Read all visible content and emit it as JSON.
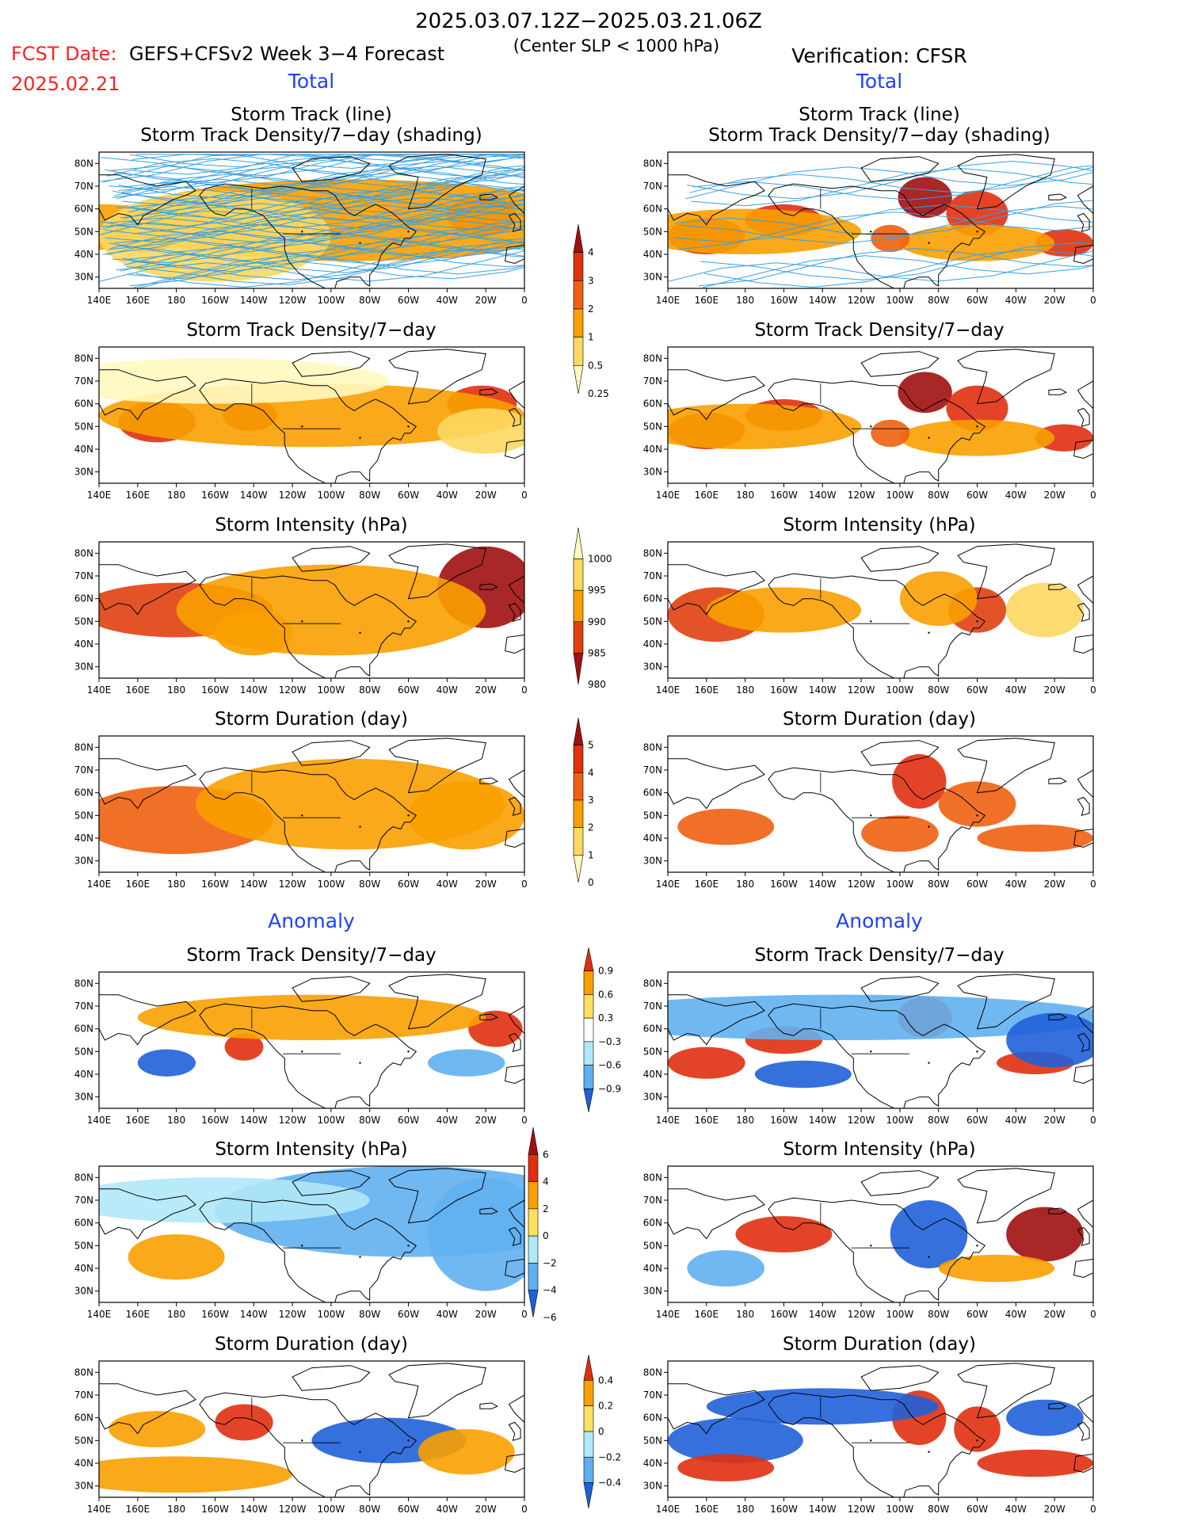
{
  "header": {
    "period": "2025.03.07.12Z−2025.03.21.06Z",
    "fcst_date_label": "FCST Date:",
    "fcst_date": "2025.02.21",
    "model": "GEFS+CFSv2 Week 3−4 Forecast",
    "criterion": "(Center SLP < 1000 hPa)",
    "verification": "Verification: CFSR"
  },
  "sections": {
    "total_left": "Total",
    "total_right": "Total",
    "anomaly_left": "Anomaly",
    "anomaly_right": "Anomaly"
  },
  "axes": {
    "lon_ticks": [
      "140E",
      "160E",
      "180",
      "160W",
      "140W",
      "120W",
      "100W",
      "80W",
      "60W",
      "40W",
      "20W",
      "0"
    ],
    "lat_ticks": [
      "80N",
      "70N",
      "60N",
      "50N",
      "40N",
      "30N"
    ]
  },
  "colorbars": {
    "density": {
      "labels": [
        "4",
        "3",
        "2",
        "1",
        "0.5",
        "0.25"
      ],
      "colors": [
        "#a01010",
        "#e03010",
        "#f06010",
        "#f8a000",
        "#fcd860",
        "#fff8c0"
      ]
    },
    "intensity": {
      "labels": [
        "1000",
        "995",
        "990",
        "985",
        "980"
      ],
      "colors": [
        "#fff8c0",
        "#fcd860",
        "#f8a000",
        "#e04010",
        "#a01010"
      ]
    },
    "duration": {
      "labels": [
        "5",
        "4",
        "3",
        "2",
        "1",
        "0"
      ],
      "colors": [
        "#a01010",
        "#e03010",
        "#f06010",
        "#f8a000",
        "#fcd860",
        "#fff8c0"
      ]
    },
    "density_anom": {
      "labels": [
        "0.9",
        "0.6",
        "0.3",
        "−0.3",
        "−0.6",
        "−0.9"
      ],
      "colors": [
        "#e03010",
        "#f8a000",
        "#fce060",
        "#ffffff",
        "#b0e8f8",
        "#60b0f0",
        "#2060d8"
      ]
    },
    "intensity_anom": {
      "labels": [
        "6",
        "4",
        "2",
        "0",
        "−2",
        "−4",
        "−6"
      ],
      "colors": [
        "#a01010",
        "#e03010",
        "#f8a000",
        "#fce060",
        "#b0e8f8",
        "#60b0f0",
        "#2060d8"
      ]
    },
    "duration_anom": {
      "labels": [
        "0.4",
        "0.2",
        "0",
        "−0.2",
        "−0.4"
      ],
      "colors": [
        "#e03010",
        "#f8a000",
        "#fce060",
        "#b0e8f8",
        "#60b0f0",
        "#2060d8"
      ]
    }
  },
  "panels": [
    {
      "id": "fc-track",
      "title1": "Storm Track (line)",
      "title2": "Storm Track Density/7−day (shading)"
    },
    {
      "id": "ob-track",
      "title1": "Storm Track (line)",
      "title2": "Storm Track Density/7−day (shading)"
    },
    {
      "id": "fc-density",
      "title1": "Storm Track Density/7−day"
    },
    {
      "id": "ob-density",
      "title1": "Storm Track Density/7−day"
    },
    {
      "id": "fc-intensity",
      "title1": "Storm Intensity (hPa)"
    },
    {
      "id": "ob-intensity",
      "title1": "Storm Intensity (hPa)"
    },
    {
      "id": "fc-duration",
      "title1": "Storm Duration (day)"
    },
    {
      "id": "ob-duration",
      "title1": "Storm Duration (day)"
    },
    {
      "id": "fc-density-anom",
      "title1": "Storm Track Density/7−day"
    },
    {
      "id": "ob-density-anom",
      "title1": "Storm Track Density/7−day"
    },
    {
      "id": "fc-intensity-anom",
      "title1": "Storm Intensity (hPa)"
    },
    {
      "id": "ob-intensity-anom",
      "title1": "Storm Intensity (hPa)"
    },
    {
      "id": "fc-duration-anom",
      "title1": "Storm Duration (day)"
    },
    {
      "id": "ob-duration-anom",
      "title1": "Storm Duration (day)"
    }
  ],
  "chart_data": {
    "type": "heatmap",
    "x_range_deg_lon": [
      140,
      360
    ],
    "y_range_deg_lat": [
      25,
      85
    ],
    "projection": "lat-lon",
    "blobs": {
      "fc-track": [
        [
          165,
          50,
          18,
          9,
          3
        ],
        [
          140,
          52,
          50,
          10,
          1
        ],
        [
          338,
          57,
          18,
          9,
          3
        ],
        [
          270,
          55,
          120,
          18,
          1
        ],
        [
          200,
          48,
          60,
          20,
          0.6
        ]
      ],
      "ob-track": [
        [
          160,
          48,
          20,
          8,
          3
        ],
        [
          200,
          55,
          20,
          7,
          3
        ],
        [
          273,
          65,
          14,
          9,
          4
        ],
        [
          300,
          58,
          16,
          10,
          3
        ],
        [
          345,
          45,
          15,
          6,
          3
        ],
        [
          180,
          50,
          60,
          10,
          1.5
        ],
        [
          300,
          45,
          40,
          8,
          1.5
        ],
        [
          255,
          47,
          10,
          6,
          2
        ]
      ],
      "fc-density": [
        [
          170,
          52,
          20,
          9,
          3.2
        ],
        [
          218,
          55,
          14,
          7,
          3.2
        ],
        [
          338,
          60,
          18,
          8,
          3.4
        ],
        [
          250,
          55,
          110,
          14,
          1.1
        ],
        [
          200,
          70,
          90,
          10,
          0.4
        ],
        [
          340,
          48,
          25,
          10,
          0.8
        ]
      ],
      "ob-density": [
        [
          160,
          48,
          20,
          8,
          3
        ],
        [
          200,
          55,
          20,
          7,
          3
        ],
        [
          273,
          65,
          14,
          9,
          4
        ],
        [
          300,
          58,
          16,
          10,
          3
        ],
        [
          345,
          45,
          15,
          6,
          3
        ],
        [
          180,
          50,
          60,
          10,
          1.5
        ],
        [
          300,
          45,
          40,
          8,
          1.5
        ],
        [
          255,
          47,
          10,
          6,
          2
        ]
      ],
      "fc-intensity": [
        [
          180,
          55,
          50,
          12,
          987
        ],
        [
          340,
          65,
          25,
          18,
          981
        ],
        [
          260,
          55,
          80,
          20,
          989
        ],
        [
          220,
          45,
          20,
          10,
          990
        ]
      ],
      "ob-intensity": [
        [
          165,
          53,
          25,
          12,
          983
        ],
        [
          300,
          55,
          15,
          10,
          984
        ],
        [
          200,
          55,
          40,
          10,
          990
        ],
        [
          280,
          60,
          20,
          12,
          992
        ],
        [
          335,
          55,
          20,
          12,
          996
        ]
      ],
      "fc-duration": [
        [
          180,
          48,
          50,
          15,
          3.2
        ],
        [
          270,
          55,
          80,
          20,
          2.6
        ],
        [
          330,
          50,
          30,
          15,
          3.0
        ]
      ],
      "ob-duration": [
        [
          270,
          65,
          14,
          12,
          4.2
        ],
        [
          300,
          55,
          20,
          10,
          3.5
        ],
        [
          170,
          45,
          25,
          8,
          3.6
        ],
        [
          330,
          40,
          30,
          6,
          3.8
        ],
        [
          260,
          42,
          20,
          8,
          3.5
        ]
      ],
      "fc-density-anom": [
        [
          175,
          45,
          15,
          6,
          -0.8
        ],
        [
          215,
          52,
          10,
          6,
          0.7
        ],
        [
          345,
          60,
          14,
          8,
          0.8
        ],
        [
          330,
          45,
          20,
          6,
          -0.3
        ],
        [
          250,
          65,
          90,
          10,
          0.4
        ]
      ],
      "ob-density-anom": [
        [
          160,
          45,
          20,
          7,
          0.8
        ],
        [
          200,
          55,
          20,
          6,
          0.8
        ],
        [
          273,
          65,
          14,
          9,
          0.9
        ],
        [
          330,
          45,
          20,
          5,
          0.8
        ],
        [
          230,
          65,
          140,
          10,
          -0.4
        ],
        [
          340,
          55,
          25,
          12,
          -0.7
        ],
        [
          210,
          40,
          25,
          6,
          -0.7
        ]
      ],
      "fc-intensity-anom": [
        [
          180,
          45,
          25,
          10,
          3
        ],
        [
          300,
          65,
          100,
          20,
          -3
        ],
        [
          200,
          70,
          80,
          10,
          -2
        ],
        [
          340,
          55,
          30,
          25,
          -4
        ]
      ],
      "ob-intensity-anom": [
        [
          200,
          55,
          25,
          8,
          5
        ],
        [
          335,
          55,
          20,
          12,
          7
        ],
        [
          275,
          55,
          20,
          15,
          -5
        ],
        [
          170,
          40,
          20,
          8,
          -4
        ],
        [
          310,
          40,
          30,
          6,
          3
        ]
      ],
      "fc-duration-anom": [
        [
          170,
          55,
          25,
          8,
          0.3
        ],
        [
          215,
          58,
          15,
          8,
          0.4
        ],
        [
          290,
          50,
          40,
          10,
          -0.3
        ],
        [
          180,
          35,
          60,
          8,
          0.3
        ],
        [
          330,
          45,
          25,
          10,
          0.2
        ]
      ],
      "ob-duration-anom": [
        [
          270,
          60,
          14,
          12,
          0.4
        ],
        [
          175,
          50,
          35,
          10,
          -0.4
        ],
        [
          170,
          38,
          25,
          6,
          0.4
        ],
        [
          300,
          55,
          12,
          10,
          0.4
        ],
        [
          330,
          40,
          30,
          6,
          0.4
        ],
        [
          220,
          65,
          60,
          8,
          -0.3
        ],
        [
          335,
          60,
          20,
          8,
          -0.3
        ]
      ]
    }
  }
}
